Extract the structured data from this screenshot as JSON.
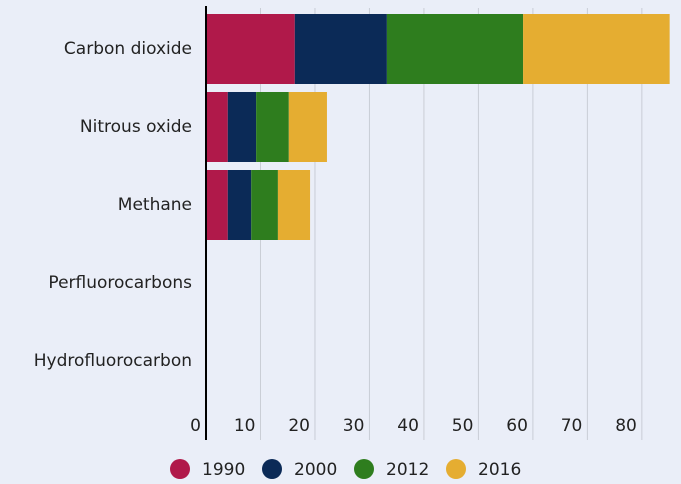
{
  "chart_data": {
    "type": "bar",
    "orientation": "horizontal",
    "stacked": true,
    "categories": [
      "Carbon dioxide",
      "Nitrous oxide",
      "Methane",
      "Perfluorocarbons",
      "Hydrofluorocarbon"
    ],
    "series": [
      {
        "name": "1990",
        "color": "#b0194a",
        "values": [
          16.3,
          4.0,
          4.0,
          0,
          0
        ]
      },
      {
        "name": "2000",
        "color": "#0b2a57",
        "values": [
          16.9,
          5.2,
          4.3,
          0,
          0
        ]
      },
      {
        "name": "2012",
        "color": "#2e7d1e",
        "values": [
          25.0,
          6.0,
          4.9,
          0,
          0
        ]
      },
      {
        "name": "2016",
        "color": "#e5ad31",
        "values": [
          26.9,
          7.0,
          5.9,
          0,
          0
        ]
      }
    ],
    "xlim": [
      0,
      87
    ],
    "xticks": [
      0,
      10,
      20,
      30,
      40,
      50,
      60,
      70,
      80
    ],
    "grid": true,
    "legend": "bottom"
  }
}
